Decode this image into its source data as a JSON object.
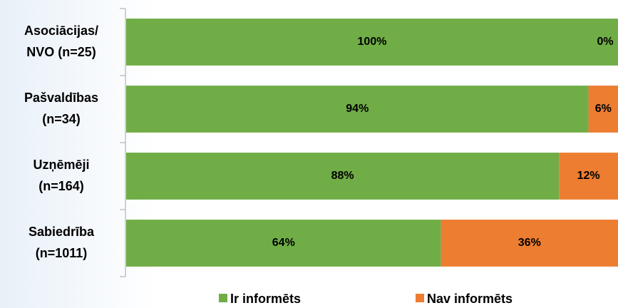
{
  "chart_data": {
    "type": "stacked_bar_horizontal",
    "categories": [
      [
        "Asociācijas/",
        "NVO (n=25)"
      ],
      [
        "Pašvaldības",
        "(n=34)"
      ],
      [
        "Uzņēmēji",
        "(n=164)"
      ],
      [
        "Sabiedrība",
        "(n=1011)"
      ]
    ],
    "series": [
      {
        "name": "Ir informēts",
        "color": "#70ad47",
        "values": [
          100,
          94,
          88,
          64
        ],
        "value_labels": [
          "100%",
          "94%",
          "88%",
          "64%"
        ]
      },
      {
        "name": "Nav informēts",
        "color": "#ed7d31",
        "values": [
          0,
          6,
          12,
          36
        ],
        "value_labels": [
          "0%",
          "6%",
          "12%",
          "36%"
        ]
      }
    ],
    "xlim": [
      0,
      100
    ],
    "legend": "bottom"
  }
}
